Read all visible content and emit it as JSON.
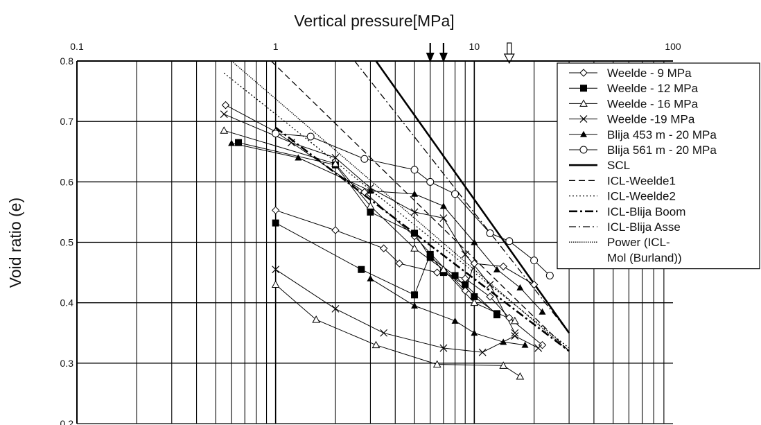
{
  "chart_data": {
    "type": "scatter",
    "title": "",
    "xlabel": "Vertical pressure[MPa]",
    "ylabel": "Void ratio (e)",
    "x_scale": "log",
    "xlim": [
      0.1,
      100
    ],
    "ylim": [
      0.2,
      0.8
    ],
    "x_ticks": [
      {
        "value": 0.1,
        "label": "0.1"
      },
      {
        "value": 1,
        "label": "1"
      },
      {
        "value": 10,
        "label": "10"
      },
      {
        "value": 100,
        "label": "100"
      }
    ],
    "y_ticks": [
      {
        "value": 0.2,
        "label": "0.2"
      },
      {
        "value": 0.3,
        "label": "0.3"
      },
      {
        "value": 0.4,
        "label": "0.4"
      },
      {
        "value": 0.5,
        "label": "0.5"
      },
      {
        "value": 0.6,
        "label": "0.6"
      },
      {
        "value": 0.7,
        "label": "0.7"
      },
      {
        "value": 0.8,
        "label": "0.8"
      }
    ],
    "grid": true,
    "legend_position": "top-right",
    "series": [
      {
        "name": "Weelde - 9 MPa",
        "marker": "diamond",
        "line": "solid",
        "points": [
          [
            0.56,
            0.727
          ],
          [
            1.0,
            0.683
          ],
          [
            2.8,
            0.583
          ],
          [
            5.0,
            0.51
          ],
          [
            9.0,
            0.42
          ],
          [
            10.0,
            0.465
          ],
          [
            14.0,
            0.46
          ],
          [
            20.0,
            0.43
          ]
        ]
      },
      {
        "name": "Weelde - 9 MPa",
        "marker": "diamond",
        "line": "solid",
        "points": [
          [
            1.0,
            0.553
          ],
          [
            2.0,
            0.52
          ],
          [
            3.5,
            0.49
          ],
          [
            4.2,
            0.465
          ],
          [
            6.5,
            0.45
          ],
          [
            9.0,
            0.44
          ],
          [
            12.0,
            0.41
          ],
          [
            15.0,
            0.375
          ],
          [
            22.0,
            0.33
          ]
        ]
      },
      {
        "name": "Weelde - 12 MPa",
        "marker": "square-filled",
        "line": "solid",
        "points": [
          [
            0.65,
            0.665
          ],
          [
            2.0,
            0.628
          ],
          [
            3.0,
            0.55
          ],
          [
            5.0,
            0.515
          ],
          [
            6.0,
            0.475
          ],
          [
            8.0,
            0.445
          ],
          [
            10.0,
            0.41
          ],
          [
            13.0,
            0.382
          ]
        ]
      },
      {
        "name": "Weelde - 12 MPa",
        "marker": "square-filled",
        "line": "solid",
        "points": [
          [
            1.0,
            0.532
          ],
          [
            2.7,
            0.455
          ],
          [
            5.0,
            0.413
          ],
          [
            6.0,
            0.48
          ],
          [
            7.0,
            0.45
          ],
          [
            9.0,
            0.43
          ],
          [
            13.0,
            0.38
          ]
        ]
      },
      {
        "name": "Weelde - 16 MPa",
        "marker": "triangle-open",
        "line": "solid",
        "points": [
          [
            0.55,
            0.685
          ],
          [
            2.0,
            0.63
          ],
          [
            3.0,
            0.56
          ],
          [
            5.0,
            0.49
          ],
          [
            7.0,
            0.455
          ],
          [
            10.0,
            0.4
          ],
          [
            16.0,
            0.37
          ]
        ]
      },
      {
        "name": "Weelde - 16 MPa",
        "marker": "triangle-open",
        "line": "solid",
        "points": [
          [
            1.0,
            0.43
          ],
          [
            1.6,
            0.372
          ],
          [
            3.2,
            0.33
          ],
          [
            6.5,
            0.298
          ],
          [
            14.0,
            0.296
          ],
          [
            17.0,
            0.278
          ]
        ]
      },
      {
        "name": "Weelde -19 MPa",
        "marker": "x",
        "line": "solid",
        "points": [
          [
            0.55,
            0.712
          ],
          [
            1.2,
            0.665
          ],
          [
            2.0,
            0.64
          ],
          [
            3.0,
            0.59
          ],
          [
            5.0,
            0.55
          ],
          [
            7.0,
            0.54
          ],
          [
            9.0,
            0.48
          ],
          [
            12.0,
            0.43
          ],
          [
            16.0,
            0.35
          ]
        ]
      },
      {
        "name": "Weelde -19 MPa",
        "marker": "x",
        "line": "solid",
        "points": [
          [
            1.0,
            0.455
          ],
          [
            2.0,
            0.39
          ],
          [
            3.5,
            0.35
          ],
          [
            7.0,
            0.325
          ],
          [
            11.0,
            0.318
          ],
          [
            16.0,
            0.345
          ],
          [
            21.0,
            0.325
          ]
        ]
      },
      {
        "name": "Blija 453 m - 20 MPa",
        "marker": "triangle-filled",
        "line": "solid",
        "points": [
          [
            0.6,
            0.664
          ],
          [
            1.3,
            0.64
          ],
          [
            3.0,
            0.585
          ],
          [
            5.0,
            0.58
          ],
          [
            7.0,
            0.56
          ],
          [
            10.0,
            0.5
          ],
          [
            13.0,
            0.455
          ],
          [
            17.0,
            0.425
          ],
          [
            22.0,
            0.385
          ]
        ]
      },
      {
        "name": "Blija 453 m - 20 MPa",
        "marker": "triangle-filled",
        "line": "solid",
        "points": [
          [
            3.0,
            0.44
          ],
          [
            5.0,
            0.395
          ],
          [
            8.0,
            0.37
          ],
          [
            10.0,
            0.35
          ],
          [
            14.0,
            0.335
          ],
          [
            18.0,
            0.33
          ]
        ]
      },
      {
        "name": "Blija 561 m - 20 MPa",
        "marker": "circle-open",
        "line": "solid",
        "points": [
          [
            1.0,
            0.68
          ],
          [
            1.5,
            0.675
          ],
          [
            2.8,
            0.638
          ],
          [
            5.0,
            0.62
          ],
          [
            6.0,
            0.6
          ],
          [
            8.0,
            0.58
          ],
          [
            12.0,
            0.515
          ],
          [
            15.0,
            0.502
          ],
          [
            20.0,
            0.47
          ],
          [
            24.0,
            0.445
          ]
        ]
      },
      {
        "name": "SCL",
        "marker": "none",
        "line": "solid-thick",
        "points": [
          [
            3.2,
            0.8
          ],
          [
            30.0,
            0.35
          ]
        ]
      },
      {
        "name": "ICL-Weelde1",
        "marker": "none",
        "line": "dashed",
        "points": [
          [
            0.95,
            0.8
          ],
          [
            30.0,
            0.32
          ]
        ]
      },
      {
        "name": "ICL-Weelde2",
        "marker": "none",
        "line": "dotted",
        "points": [
          [
            0.55,
            0.78
          ],
          [
            30.0,
            0.325
          ]
        ]
      },
      {
        "name": "ICL-Blija Boom",
        "marker": "none",
        "line": "dash-dot-thick",
        "points": [
          [
            1.0,
            0.69
          ],
          [
            30.0,
            0.32
          ]
        ]
      },
      {
        "name": "ICL-Blija Asse",
        "marker": "none",
        "line": "dash-dot",
        "points": [
          [
            2.5,
            0.8
          ],
          [
            30.0,
            0.35
          ]
        ]
      },
      {
        "name": "Power (ICL-Mol (Burland))",
        "marker": "none",
        "line": "dotted-dense",
        "points": [
          [
            0.6,
            0.8
          ],
          [
            30.0,
            0.32
          ]
        ]
      }
    ],
    "annotations": [
      {
        "type": "arrow-filled",
        "x": 6.0
      },
      {
        "type": "arrow-filled",
        "x": 7.0
      },
      {
        "type": "arrow-open",
        "x": 15.0
      }
    ]
  },
  "legend": {
    "items": [
      {
        "label": "Weelde - 9 MPa",
        "marker": "diamond",
        "line": "solid"
      },
      {
        "label": "Weelde - 12 MPa",
        "marker": "square-filled",
        "line": "solid"
      },
      {
        "label": "Weelde - 16 MPa",
        "marker": "triangle-open",
        "line": "solid"
      },
      {
        "label": "Weelde -19 MPa",
        "marker": "x",
        "line": "solid"
      },
      {
        "label": "Blija 453 m - 20 MPa",
        "marker": "triangle-filled",
        "line": "solid"
      },
      {
        "label": "Blija 561 m - 20 MPa",
        "marker": "circle-open",
        "line": "solid"
      },
      {
        "label": "SCL",
        "marker": "none",
        "line": "solid-thick"
      },
      {
        "label": "ICL-Weelde1",
        "marker": "none",
        "line": "dashed"
      },
      {
        "label": "ICL-Weelde2",
        "marker": "none",
        "line": "dotted"
      },
      {
        "label": "ICL-Blija Boom",
        "marker": "none",
        "line": "dash-dot-thick"
      },
      {
        "label": "ICL-Blija Asse",
        "marker": "none",
        "line": "dash-dot"
      },
      {
        "label": "Power (ICL-",
        "marker": "none",
        "line": "dotted-dense"
      },
      {
        "label": "Mol (Burland))",
        "marker": "none",
        "line": "none"
      }
    ]
  }
}
